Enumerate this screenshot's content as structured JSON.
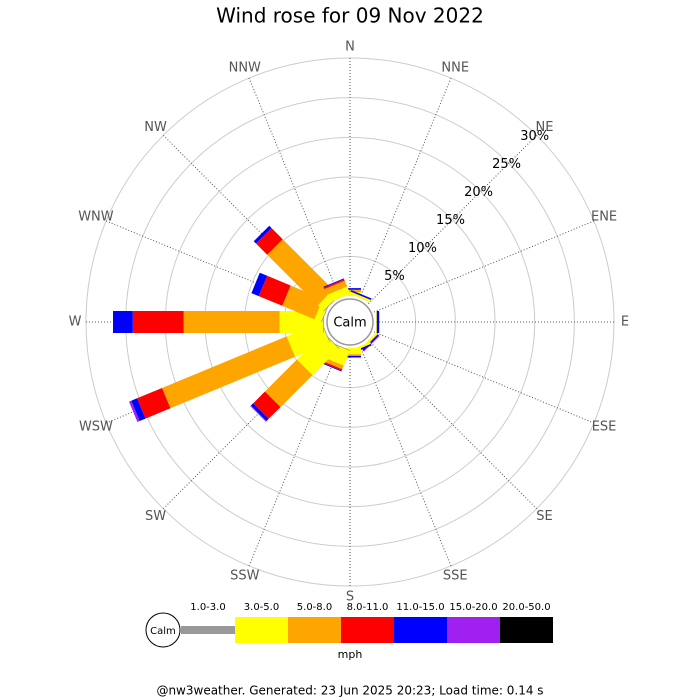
{
  "chart_data": {
    "type": "windrose",
    "title": "Wind rose for 09 Nov 2022",
    "calm_label": "Calm",
    "units_label": "mph",
    "footer": "@nw3weather. Generated: 23 Jun 2025 20:23; Load time: 0.14 s",
    "categories": [
      "N",
      "NNE",
      "NE",
      "ENE",
      "E",
      "ESE",
      "SE",
      "SSE",
      "S",
      "SSW",
      "SW",
      "WSW",
      "W",
      "WNW",
      "NW",
      "NNW"
    ],
    "ylim": [
      0,
      30
    ],
    "yticks": [
      {
        "value": 5,
        "label": "5%"
      },
      {
        "value": 10,
        "label": "10%"
      },
      {
        "value": 15,
        "label": "15%"
      },
      {
        "value": 20,
        "label": "20%"
      },
      {
        "value": 25,
        "label": "25%"
      },
      {
        "value": 30,
        "label": "30%"
      }
    ],
    "series": [
      {
        "name": "1.0-3.0",
        "color": "#999999",
        "values": [
          0,
          0,
          0,
          0,
          0,
          0,
          0,
          0,
          0,
          0.1,
          0.1,
          0.1,
          0.1,
          0.1,
          0.1,
          0
        ]
      },
      {
        "name": "3.0-5.0",
        "color": "#ffff00",
        "values": [
          0.5,
          0.3,
          0,
          0,
          0.1,
          0,
          0.3,
          0.3,
          0.8,
          2.0,
          4.7,
          4.7,
          5.5,
          0.9,
          1.0,
          1.0
        ]
      },
      {
        "name": "5.0-8.0",
        "color": "#ffa500",
        "values": [
          0.3,
          0,
          0,
          0,
          0,
          0,
          0,
          0,
          0.2,
          0.5,
          5.7,
          17.0,
          12.1,
          4.4,
          9.0,
          0.8
        ]
      },
      {
        "name": "8.0-11.0",
        "color": "#ff0000",
        "values": [
          0,
          0,
          0,
          0,
          0,
          0,
          0,
          0,
          0,
          0.2,
          2.1,
          3.4,
          6.4,
          3.2,
          2.0,
          0.2
        ]
      },
      {
        "name": "11.0-15.0",
        "color": "#0000ff",
        "values": [
          0.2,
          0.2,
          0,
          0,
          0.3,
          0,
          0.2,
          0.2,
          0.2,
          0.1,
          0.4,
          0.8,
          2.5,
          1.0,
          0.4,
          0.1
        ]
      },
      {
        "name": "15.0-20.0",
        "color": "#a020f0",
        "values": [
          0,
          0,
          0,
          0,
          0,
          0,
          0.1,
          0,
          0,
          0,
          0.1,
          0.3,
          0,
          0,
          0,
          0
        ]
      },
      {
        "name": "20.0-50.0",
        "color": "#000000",
        "values": [
          0,
          0,
          0,
          0,
          0,
          0,
          0,
          0,
          0,
          0,
          0,
          0,
          0,
          0,
          0,
          0
        ]
      }
    ]
  }
}
